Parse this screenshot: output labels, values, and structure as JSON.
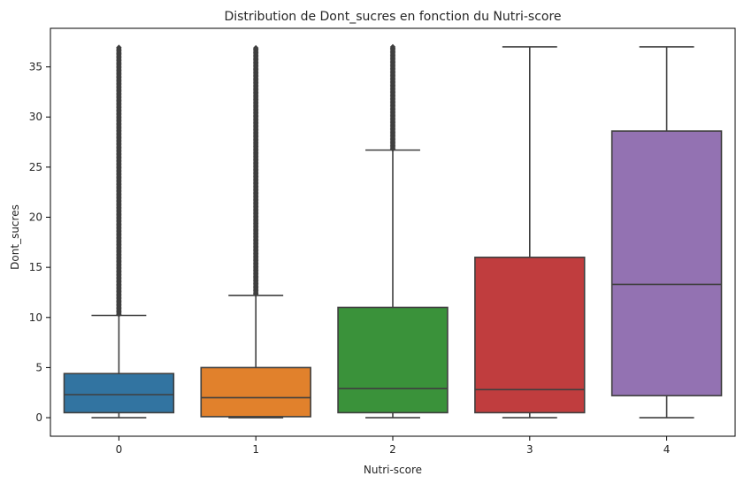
{
  "chart_data": {
    "type": "box",
    "title": "Distribution de Dont_sucres en fonction du Nutri-score",
    "xlabel": "Nutri-score",
    "ylabel": "Dont_sucres",
    "categories": [
      "0",
      "1",
      "2",
      "3",
      "4"
    ],
    "ylim": [
      -1.85,
      38.85
    ],
    "yticks": [
      0,
      5,
      10,
      15,
      20,
      25,
      30,
      35
    ],
    "grid": false,
    "legend": "none",
    "boxes": [
      {
        "category": "0",
        "whisker_low": 0,
        "q1": 0.5,
        "median": 2.3,
        "q3": 4.4,
        "whisker_high": 10.2,
        "outliers_from": 10.3,
        "outliers_to": 37,
        "color": "#3274a1"
      },
      {
        "category": "1",
        "whisker_low": 0,
        "q1": 0.1,
        "median": 2.0,
        "q3": 5.0,
        "whisker_high": 12.2,
        "outliers_from": 12.3,
        "outliers_to": 37,
        "color": "#e1812c"
      },
      {
        "category": "2",
        "whisker_low": 0,
        "q1": 0.5,
        "median": 2.9,
        "q3": 11.0,
        "whisker_high": 26.7,
        "outliers_from": 26.8,
        "outliers_to": 37,
        "color": "#3a923a"
      },
      {
        "category": "3",
        "whisker_low": 0,
        "q1": 0.5,
        "median": 2.8,
        "q3": 16.0,
        "whisker_high": 37.0,
        "outliers_from": null,
        "outliers_to": null,
        "color": "#c03d3e"
      },
      {
        "category": "4",
        "whisker_low": 0,
        "q1": 2.2,
        "median": 13.3,
        "q3": 28.6,
        "whisker_high": 37.0,
        "outliers_from": null,
        "outliers_to": null,
        "color": "#9372b2"
      }
    ]
  }
}
